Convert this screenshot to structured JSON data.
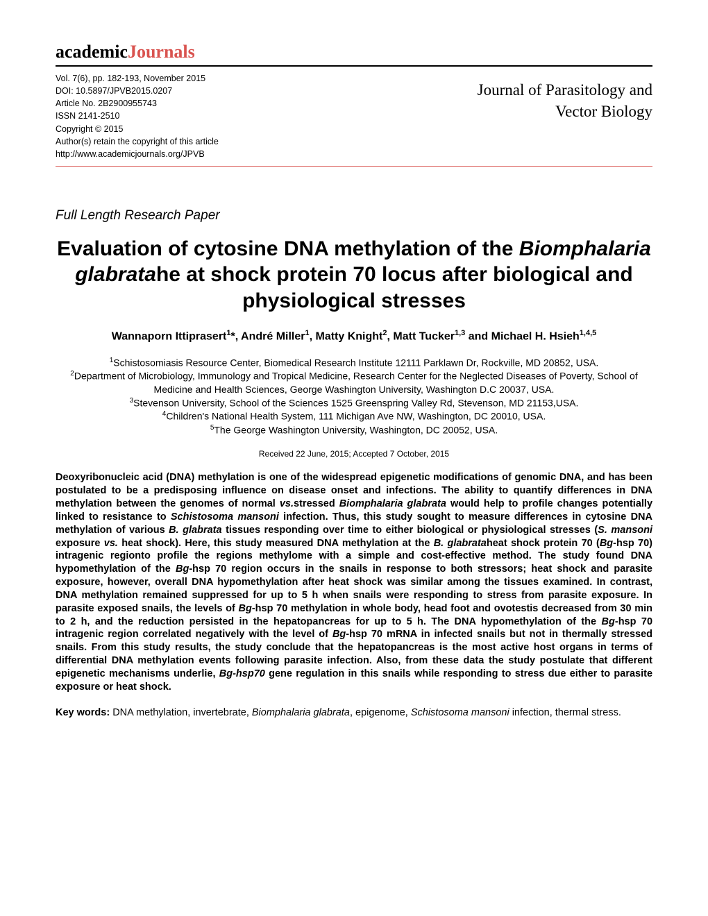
{
  "logo": {
    "part1": "academic",
    "part2": "Journals"
  },
  "metadata": {
    "volume": "Vol. 7(6), pp. 182-193, November 2015",
    "doi": "DOI: 10.5897/JPVB2015.0207",
    "article_no": "Article No. 2B2900955743",
    "issn": "ISSN 2141-2510",
    "copyright": "Copyright © 2015",
    "retain": "Author(s) retain the copyright of this article",
    "url": "http://www.academicjournals.org/JPVB"
  },
  "journal": {
    "line1": "Journal of Parasitology and",
    "line2": "Vector  Biology"
  },
  "paper_type": "Full Length Research Paper",
  "title": {
    "part1": "Evaluation of cytosine DNA methylation of the ",
    "italic": "Biomphalaria glabrata",
    "part2": "he at shock protein 70 locus after biological and physiological stresses"
  },
  "authors_html": "Wannaporn Ittiprasert<sup>1</sup>*, André Miller<sup>1</sup>, Matty Knight<sup>2</sup>, Matt Tucker<sup>1,3</sup> and Michael H. Hsieh<sup>1,4,5</sup>",
  "affiliations": {
    "a1": "Schistosomiasis Resource Center, Biomedical Research Institute 12111 Parklawn Dr, Rockville, MD 20852, USA.",
    "a2": "Department of Microbiology, Immunology and Tropical Medicine, Research Center for the Neglected Diseases of Poverty, School of Medicine and Health Sciences, George Washington University, Washington D.C 20037, USA.",
    "a3": "Stevenson University, School of the Sciences 1525 Greenspring Valley Rd, Stevenson, MD 21153,USA.",
    "a4": "Children's National Health System, 111 Michigan Ave NW, Washington, DC 20010, USA.",
    "a5": "The George Washington University, Washington, DC 20052, USA."
  },
  "dates": "Received 22 June, 2015; Accepted 7 October, 2015",
  "abstract": {
    "p1": "Deoxyribonucleic acid (DNA) methylation is one of the widespread epigenetic modifications of genomic DNA, and has been postulated to be a predisposing influence on disease onset and infections. The ability to quantify differences in DNA methylation between the genomes of normal ",
    "i1": "vs.",
    "p2": "stressed ",
    "i2": "Biomphalaria glabrata",
    "p3": " would help to profile changes potentially linked to resistance to ",
    "i3": "Schistosoma mansoni",
    "p4": " infection. Thus, this study sought to measure differences in cytosine DNA methylation of various ",
    "i4": "B. glabrata",
    "p5": " tissues responding over time to either biological or physiological stresses (",
    "i5": "S. mansoni",
    "p6": " exposure ",
    "i6": "vs.",
    "p7": " heat shock). Here, this study measured DNA methylation at the ",
    "i7": "B. glabrata",
    "p8": "heat shock protein 70 (",
    "i8": "Bg",
    "p9": "-hsp 70) intragenic regionto profile the regions methylome with a simple and cost-effective method. The study found DNA hypomethylation of the ",
    "i9": "Bg",
    "p10": "-hsp 70 region occurs in the snails in response to both stressors; heat shock and parasite exposure, however, overall DNA hypomethylation after heat shock was similar among the tissues examined.  In contrast, DNA methylation remained suppressed for up to 5 h when snails were responding to stress from parasite exposure.  In parasite exposed snails, the levels of ",
    "i10": "Bg",
    "p11": "-hsp 70 methylation in whole body, head foot and ovotestis decreased from 30 min to 2 h, and the reduction persisted in the hepatopancreas for up to 5 h.  The DNA hypomethylation of the ",
    "i11": "Bg",
    "p12": "-hsp 70 intragenic region correlated negatively with the level of ",
    "i12": "Bg",
    "p13": "-hsp 70 mRNA in infected snails but not in thermally stressed snails. From this study results, the study conclude that the hepatopancreas is the most active host organs in terms of differential DNA methylation events following parasite infection.  Also, from these data the study postulate that different epigenetic mechanisms underlie, ",
    "i13": "Bg-hsp70",
    "p14": " gene regulation in this snails while responding to stress due either to parasite exposure or heat shock."
  },
  "keywords": {
    "label": "Key words:",
    "p1": " DNA methylation, invertebrate, ",
    "i1": "Biomphalaria glabrata",
    "p2": ", epigenome, ",
    "i2": "Schistosoma mansoni",
    "p3": " infection, thermal stress."
  }
}
